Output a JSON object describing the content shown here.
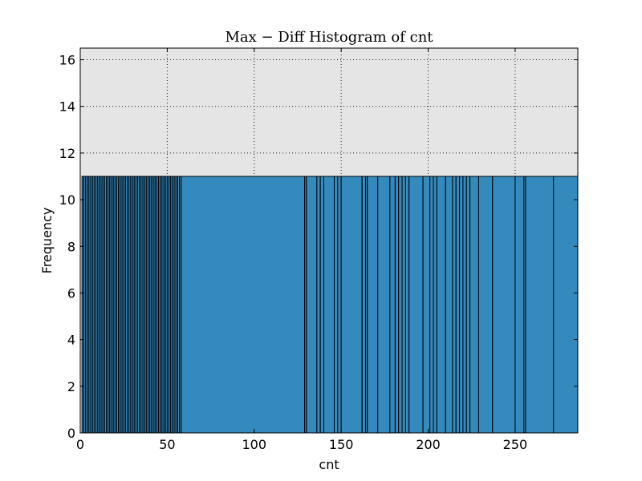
{
  "chart_data": {
    "type": "bar",
    "title": "Max − Diff Histogram of cnt",
    "xlabel": "cnt",
    "ylabel": "Frequency",
    "xlim": [
      0,
      286
    ],
    "ylim": [
      0,
      16.5
    ],
    "xticks": [
      0,
      50,
      100,
      150,
      200,
      250
    ],
    "yticks": [
      0,
      2,
      4,
      6,
      8,
      10,
      12,
      14,
      16
    ],
    "grid": true,
    "background": "#e5e5e5",
    "bar_color": "#348abd",
    "bar_height": 11,
    "bin_edges": [
      1,
      2,
      3,
      4,
      5,
      6,
      7,
      8,
      9,
      10,
      11,
      12,
      13,
      14,
      15,
      16,
      17,
      18,
      19,
      20,
      21,
      22,
      23,
      24,
      25,
      26,
      27,
      28,
      29,
      30,
      31,
      32,
      33,
      34,
      35,
      36,
      37,
      38,
      39,
      40,
      41,
      42,
      43,
      44,
      45,
      46,
      47,
      48,
      49,
      50,
      51,
      52,
      53,
      54,
      55,
      56,
      57,
      58,
      129,
      130,
      136,
      138,
      140,
      146,
      148,
      150,
      162,
      164,
      165,
      171,
      178,
      181,
      183,
      185,
      187,
      189,
      197,
      201,
      203,
      205,
      210,
      214,
      216,
      218,
      220,
      222,
      224,
      229,
      237,
      250,
      255,
      256,
      272,
      286
    ]
  }
}
